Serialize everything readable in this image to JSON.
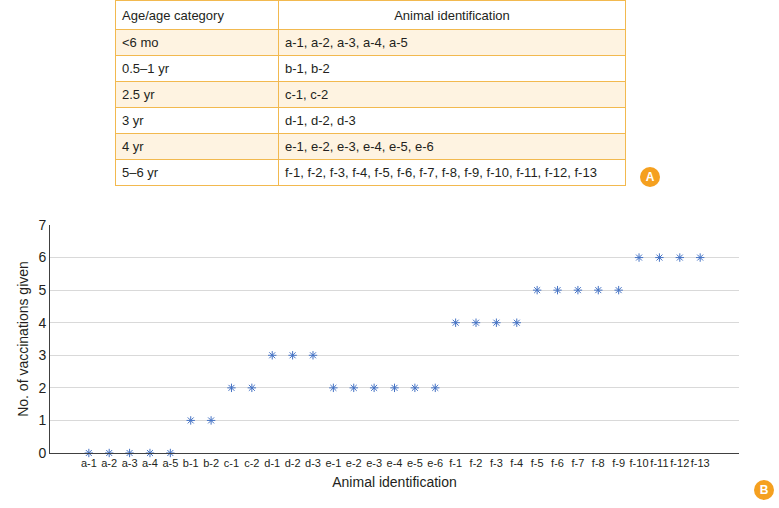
{
  "table": {
    "header": [
      "Age/age category",
      "Animal identification"
    ],
    "rows": [
      [
        "<6 mo",
        "a-1, a-2, a-3, a-4, a-5"
      ],
      [
        "0.5–1 yr",
        "b-1, b-2"
      ],
      [
        "2.5 yr",
        "c-1, c-2"
      ],
      [
        "3 yr",
        "d-1, d-2, d-3"
      ],
      [
        "4 yr",
        "e-1, e-2, e-3, e-4, e-5, e-6"
      ],
      [
        "5–6 yr",
        "f-1, f-2, f-3, f-4, f-5, f-6, f-7, f-8, f-9, f-10, f-11, f-12, f-13"
      ]
    ],
    "panel_label": "A"
  },
  "chart_data": {
    "type": "scatter",
    "panel_label": "B",
    "x_label": "Animal identification",
    "y_label": "No. of vaccinations given",
    "categories": [
      "a-1",
      "a-2",
      "a-3",
      "a-4",
      "a-5",
      "b-1",
      "b-2",
      "c-1",
      "c-2",
      "d-1",
      "d-2",
      "d-3",
      "e-1",
      "e-2",
      "e-3",
      "e-4",
      "e-5",
      "e-6",
      "f-1",
      "f-2",
      "f-3",
      "f-4",
      "f-5",
      "f-6",
      "f-7",
      "f-8",
      "f-9",
      "f-10",
      "f-11",
      "f-12",
      "f-13"
    ],
    "values": [
      0,
      0,
      0,
      0,
      0,
      1,
      1,
      2,
      2,
      3,
      3,
      3,
      2,
      2,
      2,
      2,
      2,
      2,
      4,
      4,
      4,
      4,
      5,
      5,
      5,
      5,
      5,
      6,
      6,
      6,
      6
    ],
    "ylim": [
      0,
      7
    ],
    "yticks": [
      0,
      1,
      2,
      3,
      4,
      5,
      6,
      7
    ],
    "grid": true,
    "marker": "asterisk",
    "color": "#4472c4"
  }
}
